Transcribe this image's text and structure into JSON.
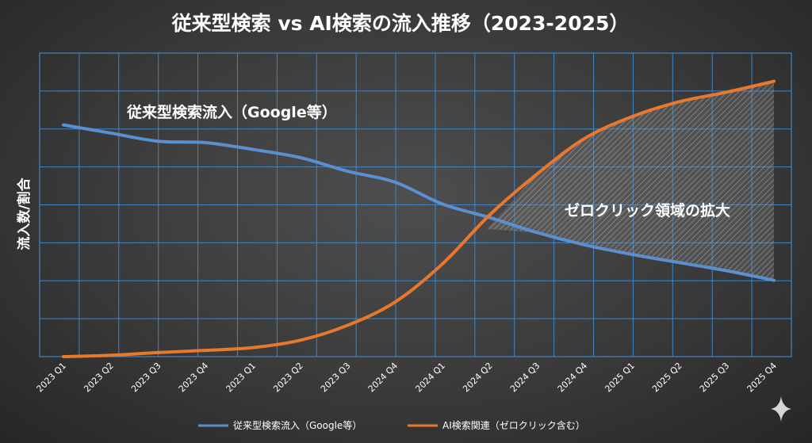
{
  "chart_data": {
    "type": "line",
    "title": "従来型検索 vs AI検索の流入推移（2023-2025）",
    "xlabel": "",
    "ylabel": "流入数/割合",
    "categories": [
      "2023 Q1",
      "2023 Q2",
      "2023 Q3",
      "2023 Q4",
      "2023 Q1",
      "2023 Q2",
      "2023 Q3",
      "2024 Q4",
      "2024 Q1",
      "2024 Q2",
      "2024 Q3",
      "2024 Q4",
      "2025 Q1",
      "2025 Q2",
      "2025 Q3",
      "2025 Q4"
    ],
    "ylim": [
      0,
      100
    ],
    "grid": true,
    "legend_position": "bottom",
    "series": [
      {
        "name": "従来型検索流入（Google等）",
        "color": "#5b8fd0",
        "values": [
          85,
          82,
          79,
          78.5,
          76,
          73,
          68,
          64,
          56,
          51,
          45.5,
          41,
          37.5,
          34.5,
          31.5,
          28
        ]
      },
      {
        "name": "AI検索関連（ゼロクリック含む）",
        "color": "#e8782e",
        "values": [
          0,
          0.5,
          1.5,
          2.3,
          3.3,
          6,
          11.5,
          20,
          34,
          52,
          67,
          80,
          88,
          93.5,
          97,
          101
        ]
      }
    ],
    "annotations": [
      {
        "text": "従来型検索流入（Google等）",
        "color": "#a8c8ff"
      },
      {
        "text": "ゼロクリック領域の拡大",
        "color": "#ffffff"
      }
    ]
  },
  "colors": {
    "grid": "#3e86c6",
    "traditional": "#5b8fd0",
    "ai": "#e8782e",
    "shade": "#8a8a8a",
    "traditional_label": "#a8c8ff"
  },
  "icons": {
    "corner": "sparkle-icon"
  }
}
